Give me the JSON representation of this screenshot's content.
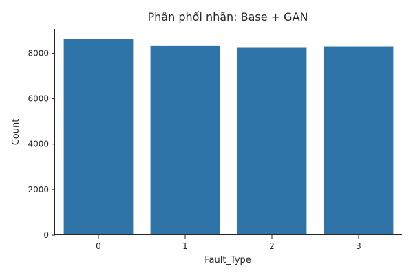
{
  "chart_data": {
    "type": "bar",
    "title": "Phân phối nhãn: Base + GAN",
    "xlabel": "Fault_Type",
    "ylabel": "Count",
    "categories": [
      "0",
      "1",
      "2",
      "3"
    ],
    "values": [
      8640,
      8320,
      8240,
      8300
    ],
    "yticks": [
      0,
      2000,
      4000,
      6000,
      8000
    ],
    "ylim": [
      0,
      9072
    ],
    "grid": false,
    "bar_color": "#2f74a8"
  }
}
